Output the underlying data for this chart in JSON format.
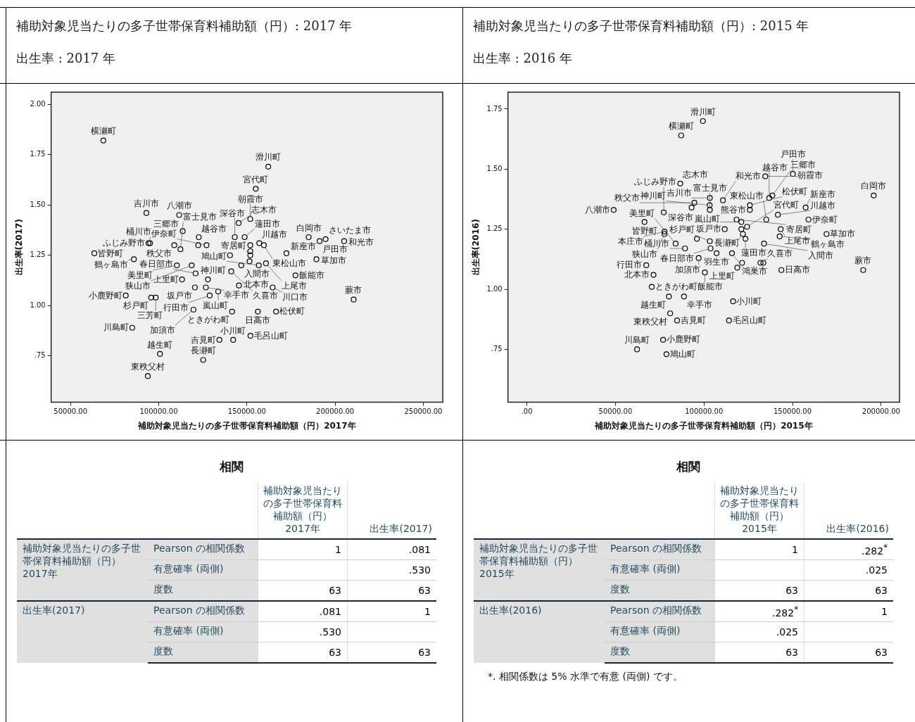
{
  "chart_data": [
    {
      "type": "scatter",
      "title": "補助対象児当たりの多子世帯保育料補助額（円）: 2017 年",
      "subtitle": "出生率 : 2017 年",
      "xlabel": "補助対象児当たりの多子世帯保育料補助額（円）2017年",
      "ylabel": "出生率(2017)",
      "marker": "circle",
      "color": "#000000",
      "xlim": [
        39000,
        261000
      ],
      "ylim": [
        0.52,
        2.06
      ],
      "xticks": [
        {
          "value": 50000,
          "label": "50000.00"
        },
        {
          "value": 100000,
          "label": "100000.00"
        },
        {
          "value": 150000,
          "label": "150000.00"
        },
        {
          "value": 200000,
          "label": "200000.00"
        },
        {
          "value": 250000,
          "label": "250000.00"
        }
      ],
      "yticks": [
        {
          "value": 0.75,
          "label": ".75"
        },
        {
          "value": 1,
          "label": "1.00"
        },
        {
          "value": 1.25,
          "label": "1.25"
        },
        {
          "value": 1.5,
          "label": "1.50"
        },
        {
          "value": 1.75,
          "label": "1.75"
        },
        {
          "value": 2,
          "label": "2.00"
        }
      ],
      "x": [
        68600,
        162100,
        155000,
        93000,
        111600,
        145300,
        151900,
        113600,
        122700,
        143100,
        148700,
        94200,
        95100,
        108800,
        122400,
        127100,
        112300,
        63500,
        85900,
        140400,
        151900,
        151900,
        151900,
        151500,
        157000,
        159600,
        110300,
        118700,
        120900,
        113200,
        141100,
        127900,
        146800,
        145500,
        156700,
        160800,
        172400,
        189400,
        185000,
        191200,
        194600,
        205100,
        177500,
        164600,
        81300,
        120500,
        126700,
        95700,
        98300,
        128900,
        133700,
        119700,
        141600,
        156200,
        166500,
        85000,
        134400,
        142200,
        152000,
        100700,
        125200,
        93800,
        210500
      ],
      "values": [
        1.82,
        1.69,
        1.58,
        1.46,
        1.45,
        1.41,
        1.43,
        1.37,
        1.34,
        1.34,
        1.34,
        1.31,
        1.31,
        1.3,
        1.3,
        1.3,
        1.28,
        1.26,
        1.23,
        1.25,
        1.3,
        1.27,
        1.25,
        1.22,
        1.31,
        1.3,
        1.2,
        1.2,
        1.16,
        1.13,
        1.17,
        1.13,
        1.2,
        1.1,
        1.2,
        1.21,
        1.26,
        1.23,
        1.34,
        1.32,
        1.33,
        1.32,
        1.15,
        1.09,
        1.05,
        1.09,
        1.09,
        1.04,
        1.04,
        1.05,
        1.07,
        0.98,
        0.97,
        0.97,
        0.97,
        0.89,
        0.83,
        0.83,
        0.85,
        0.76,
        0.73,
        0.65,
        1.03
      ],
      "annotations": [
        {
          "text": "横瀬町",
          "x": 68600,
          "y": 1.82
        },
        {
          "text": "滑川町",
          "x": 162100,
          "y": 1.69
        },
        {
          "text": "宮代町",
          "x": 155000,
          "y": 1.58
        },
        {
          "text": "吉川市",
          "x": 93000,
          "y": 1.46
        },
        {
          "text": "八潮市",
          "x": 111600,
          "y": 1.45
        },
        {
          "text": "志木市",
          "x": 145300,
          "y": 1.41
        },
        {
          "text": "朝霞市",
          "x": 151900,
          "y": 1.43
        },
        {
          "text": "三郷市",
          "x": 113600,
          "y": 1.37
        },
        {
          "text": "越谷市",
          "x": 122700,
          "y": 1.34
        },
        {
          "text": "深谷市",
          "x": 143100,
          "y": 1.34
        },
        {
          "text": "蓮田市",
          "x": 148700,
          "y": 1.34
        },
        {
          "text": "ふじみ野市",
          "x": 94200,
          "y": 1.31
        },
        {
          "text": "桶川市",
          "x": 95100,
          "y": 1.31
        },
        {
          "text": "秩父市",
          "x": 108800,
          "y": 1.3
        },
        {
          "text": "伊奈町",
          "x": 127100,
          "y": 1.3
        },
        {
          "text": "富士見市",
          "x": 112300,
          "y": 1.28
        },
        {
          "text": "皆野町",
          "x": 63500,
          "y": 1.26
        },
        {
          "text": "鶴ヶ島市",
          "x": 85900,
          "y": 1.23
        },
        {
          "text": "寄居町",
          "x": 151900,
          "y": 1.25
        },
        {
          "text": "川越市",
          "x": 157000,
          "y": 1.31
        },
        {
          "text": "東松山市",
          "x": 159600,
          "y": 1.3
        },
        {
          "text": "美里町",
          "x": 110300,
          "y": 1.2
        },
        {
          "text": "狭山市",
          "x": 118700,
          "y": 1.2
        },
        {
          "text": "春日部市",
          "x": 120900,
          "y": 1.16
        },
        {
          "text": "上里町",
          "x": 113200,
          "y": 1.13
        },
        {
          "text": "久喜市",
          "x": 141100,
          "y": 1.17
        },
        {
          "text": "神川町",
          "x": 127900,
          "y": 1.13
        },
        {
          "text": "入間市",
          "x": 146800,
          "y": 1.2
        },
        {
          "text": "北本市",
          "x": 145500,
          "y": 1.1
        },
        {
          "text": "鳩山町",
          "x": 156700,
          "y": 1.2
        },
        {
          "text": "上尾市",
          "x": 160800,
          "y": 1.21
        },
        {
          "text": "新座市",
          "x": 172400,
          "y": 1.26
        },
        {
          "text": "草加市",
          "x": 189400,
          "y": 1.23
        },
        {
          "text": "白岡市",
          "x": 185000,
          "y": 1.34
        },
        {
          "text": "戸田市",
          "x": 191200,
          "y": 1.32
        },
        {
          "text": "さいたま市",
          "x": 194600,
          "y": 1.33
        },
        {
          "text": "和光市",
          "x": 205100,
          "y": 1.32
        },
        {
          "text": "飯能市",
          "x": 177500,
          "y": 1.15
        },
        {
          "text": "川口市",
          "x": 164600,
          "y": 1.09
        },
        {
          "text": "小鹿野町",
          "x": 81300,
          "y": 1.05
        },
        {
          "text": "坂戸市",
          "x": 120500,
          "y": 1.09
        },
        {
          "text": "幸手市",
          "x": 126700,
          "y": 1.09
        },
        {
          "text": "杉戸町",
          "x": 95700,
          "y": 1.04
        },
        {
          "text": "三芳町",
          "x": 98300,
          "y": 1.04
        },
        {
          "text": "行田市",
          "x": 128900,
          "y": 1.05
        },
        {
          "text": "嵐山町",
          "x": 133700,
          "y": 1.07
        },
        {
          "text": "加須市",
          "x": 119700,
          "y": 0.98
        },
        {
          "text": "ときがわ町",
          "x": 141600,
          "y": 0.97
        },
        {
          "text": "日高市",
          "x": 156200,
          "y": 0.97
        },
        {
          "text": "松伏町",
          "x": 166500,
          "y": 0.97
        },
        {
          "text": "川島町",
          "x": 85000,
          "y": 0.89
        },
        {
          "text": "吉見町",
          "x": 134400,
          "y": 0.83
        },
        {
          "text": "小川町",
          "x": 142200,
          "y": 0.83
        },
        {
          "text": "毛呂山町",
          "x": 152000,
          "y": 0.85
        },
        {
          "text": "越生町",
          "x": 100700,
          "y": 0.76
        },
        {
          "text": "長瀞町",
          "x": 125200,
          "y": 0.73
        },
        {
          "text": "東秩父村",
          "x": 93800,
          "y": 0.65
        },
        {
          "text": "蕨市",
          "x": 210500,
          "y": 1.03
        }
      ]
    },
    {
      "type": "scatter",
      "title": "補助対象児当たりの多子世帯保育料補助額（円）: 2015 年",
      "subtitle": "出生率 : 2016 年",
      "xlabel": "補助対象児当たりの多子世帯保育料補助額（円）2015年",
      "ylabel": "出生率(2016)",
      "marker": "circle",
      "color": "#000000",
      "xlim": [
        -10700,
        210400
      ],
      "ylim": [
        0.53,
        1.82
      ],
      "xticks": [
        {
          "value": 0,
          "label": ".00"
        },
        {
          "value": 50000,
          "label": "50000.00"
        },
        {
          "value": 100000,
          "label": "100000.00"
        },
        {
          "value": 150000,
          "label": "150000.00"
        },
        {
          "value": 200000,
          "label": "200000.00"
        }
      ],
      "yticks": [
        {
          "value": 0.75,
          "label": ".75"
        },
        {
          "value": 1,
          "label": "1.00"
        },
        {
          "value": 1.25,
          "label": "1.25"
        },
        {
          "value": 1.5,
          "label": "1.50"
        },
        {
          "value": 1.75,
          "label": "1.75"
        }
      ],
      "x": [
        49000,
        77300,
        66400,
        77700,
        77700,
        84000,
        67400,
        71500,
        70500,
        80200,
        80900,
        84800,
        76900,
        62200,
        78800,
        99400,
        87100,
        134600,
        150200,
        86600,
        195800,
        136800,
        138600,
        103300,
        94600,
        93000,
        103200,
        110700,
        103300,
        125900,
        125900,
        141700,
        157400,
        118400,
        121100,
        135200,
        159000,
        111700,
        121100,
        124300,
        143300,
        122000,
        169200,
        96000,
        103300,
        123400,
        142700,
        133900,
        89300,
        103700,
        107100,
        115800,
        97000,
        121500,
        131900,
        133500,
        118800,
        143700,
        189900,
        100500,
        88700,
        116400,
        114100
      ],
      "values": [
        1.33,
        1.32,
        1.28,
        1.24,
        1.23,
        1.19,
        1.1,
        1.06,
        1.01,
        0.97,
        0.9,
        0.87,
        0.79,
        0.75,
        0.73,
        1.7,
        1.64,
        1.47,
        1.48,
        1.44,
        1.39,
        1.38,
        1.39,
        1.38,
        1.36,
        1.34,
        1.35,
        1.37,
        1.33,
        1.35,
        1.33,
        1.31,
        1.34,
        1.29,
        1.28,
        1.29,
        1.29,
        1.25,
        1.25,
        1.26,
        1.25,
        1.23,
        1.23,
        1.21,
        1.2,
        1.21,
        1.22,
        1.19,
        1.17,
        1.17,
        1.15,
        1.15,
        1.13,
        1.11,
        1.11,
        1.11,
        1.09,
        1.08,
        1.08,
        1.07,
        0.97,
        0.95,
        0.87
      ],
      "annotations": [
        {
          "text": "八潮市",
          "x": 49000,
          "y": 1.33
        },
        {
          "text": "ふじみ野市",
          "x": 77300,
          "y": 1.32
        },
        {
          "text": "皆野町",
          "x": 66400,
          "y": 1.28
        },
        {
          "text": "本庄市",
          "x": 77700,
          "y": 1.24
        },
        {
          "text": "狭山市",
          "x": 77700,
          "y": 1.23
        },
        {
          "text": "美里町",
          "x": 84000,
          "y": 1.19
        },
        {
          "text": "行田市",
          "x": 67400,
          "y": 1.1
        },
        {
          "text": "北本市",
          "x": 71500,
          "y": 1.06
        },
        {
          "text": "ときがわ町",
          "x": 70500,
          "y": 1.01
        },
        {
          "text": "越生町",
          "x": 80200,
          "y": 0.97
        },
        {
          "text": "東秩父村",
          "x": 80900,
          "y": 0.9
        },
        {
          "text": "吉見町",
          "x": 84800,
          "y": 0.87
        },
        {
          "text": "小鹿野町",
          "x": 76900,
          "y": 0.79
        },
        {
          "text": "川島町",
          "x": 62200,
          "y": 0.75
        },
        {
          "text": "鳩山町",
          "x": 78800,
          "y": 0.73
        },
        {
          "text": "滑川町",
          "x": 99400,
          "y": 1.7
        },
        {
          "text": "横瀬町",
          "x": 87100,
          "y": 1.64
        },
        {
          "text": "朝霞市",
          "x": 134600,
          "y": 1.47
        },
        {
          "text": "戸田市",
          "x": 150200,
          "y": 1.48
        },
        {
          "text": "志木市",
          "x": 86600,
          "y": 1.44
        },
        {
          "text": "白岡市",
          "x": 195800,
          "y": 1.39
        },
        {
          "text": "越谷市",
          "x": 136800,
          "y": 1.38
        },
        {
          "text": "三郷市",
          "x": 138600,
          "y": 1.39
        },
        {
          "text": "吉川市",
          "x": 103300,
          "y": 1.38
        },
        {
          "text": "秩父市",
          "x": 94600,
          "y": 1.36
        },
        {
          "text": "深谷市",
          "x": 93000,
          "y": 1.34
        },
        {
          "text": "神川町",
          "x": 103200,
          "y": 1.35
        },
        {
          "text": "和光市",
          "x": 110700,
          "y": 1.37
        },
        {
          "text": "富士見市",
          "x": 103300,
          "y": 1.33
        },
        {
          "text": "松伏町",
          "x": 125900,
          "y": 1.35
        },
        {
          "text": "熊谷市",
          "x": 125900,
          "y": 1.33
        },
        {
          "text": "川越市",
          "x": 141700,
          "y": 1.31
        },
        {
          "text": "新座市",
          "x": 157400,
          "y": 1.34
        },
        {
          "text": "寄居町",
          "x": 118400,
          "y": 1.29
        },
        {
          "text": "嵐山町",
          "x": 121100,
          "y": 1.28
        },
        {
          "text": "東松山市",
          "x": 135200,
          "y": 1.29
        },
        {
          "text": "伊奈町",
          "x": 159000,
          "y": 1.29
        },
        {
          "text": "坂戸市",
          "x": 111700,
          "y": 1.25
        },
        {
          "text": "長瀞町",
          "x": 121100,
          "y": 1.25
        },
        {
          "text": "宮代町",
          "x": 124300,
          "y": 1.26
        },
        {
          "text": "上尾市",
          "x": 143300,
          "y": 1.25
        },
        {
          "text": "草加市",
          "x": 169200,
          "y": 1.23
        },
        {
          "text": "杉戸町",
          "x": 103300,
          "y": 1.2
        },
        {
          "text": "蓮田市",
          "x": 123400,
          "y": 1.21
        },
        {
          "text": "鶴ヶ島市",
          "x": 142700,
          "y": 1.22
        },
        {
          "text": "入間市",
          "x": 133900,
          "y": 1.19
        },
        {
          "text": "桶川市",
          "x": 89300,
          "y": 1.17
        },
        {
          "text": "春日部市",
          "x": 103700,
          "y": 1.17
        },
        {
          "text": "羽生市",
          "x": 107100,
          "y": 1.15
        },
        {
          "text": "鴻巣市",
          "x": 115800,
          "y": 1.15
        },
        {
          "text": "加須市",
          "x": 97000,
          "y": 1.13
        },
        {
          "text": "久喜市",
          "x": 131900,
          "y": 1.11
        },
        {
          "text": "上里町",
          "x": 118800,
          "y": 1.09
        },
        {
          "text": "日高市",
          "x": 143700,
          "y": 1.08
        },
        {
          "text": "蕨市",
          "x": 189900,
          "y": 1.08
        },
        {
          "text": "飯能市",
          "x": 100500,
          "y": 1.07
        },
        {
          "text": "幸手市",
          "x": 88700,
          "y": 0.97
        },
        {
          "text": "小川町",
          "x": 116400,
          "y": 0.95
        },
        {
          "text": "毛呂山町",
          "x": 114100,
          "y": 0.87
        }
      ]
    },
    {
      "type": "other",
      "title": "相関",
      "annotations": [
        "補助対象児当たりの多子世帯保育料補助額（円）2017年",
        "出生率(2017)",
        "補助対象児当たりの多子世帯保育料補助額（円）2017年",
        "Pearson の相関係数",
        "1",
        ".081",
        "有意確率 (両側)",
        null,
        ".530",
        "度数",
        "63",
        "63",
        "出生率(2017)",
        "Pearson の相関係数",
        ".081",
        "1",
        "有意確率 (両側)",
        ".530",
        null,
        "度数",
        "63",
        "63"
      ]
    },
    {
      "type": "other",
      "title": "相関",
      "annotations": [
        "補助対象児当たりの多子世帯保育料補助額（円）2015年",
        "出生率(2016)",
        "補助対象児当たりの多子世帯保育料補助額（円）2015年",
        "Pearson の相関係数",
        "1",
        ".282$^{*}$",
        "有意確率 (両側)",
        null,
        ".025",
        "度数",
        "63",
        "63",
        "出生率(2016)",
        "Pearson の相関係数",
        ".282$^{*}$",
        "1",
        "有意確率 (両側)",
        ".025",
        null,
        "度数",
        "63",
        "63",
        "*. 相関係数は 5% 水準で有意 (両側) です。"
      ]
    }
  ]
}
